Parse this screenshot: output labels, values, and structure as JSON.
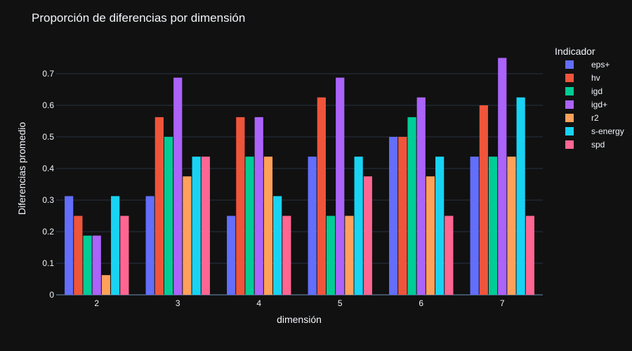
{
  "chart_data": {
    "type": "bar",
    "title": "Proporción de diferencias por dimensión",
    "xlabel": "dimensión",
    "ylabel": "Diferencias promedio",
    "ylim": [
      0,
      0.8
    ],
    "yticks": [
      0,
      0.1,
      0.2,
      0.3,
      0.4,
      0.5,
      0.6,
      0.7
    ],
    "ytick_labels": [
      "0",
      "0.1",
      "0.2",
      "0.3",
      "0.4",
      "0.5",
      "0.6",
      "0.7"
    ],
    "categories": [
      "2",
      "3",
      "4",
      "5",
      "6",
      "7"
    ],
    "grid": true,
    "legend": {
      "title": "Indicador",
      "placement": "right"
    },
    "series": [
      {
        "name": "eps+",
        "color": "#636efa",
        "values": [
          0.3125,
          0.3125,
          0.25,
          0.4375,
          0.5,
          0.4375
        ]
      },
      {
        "name": "hv",
        "color": "#ef553b",
        "values": [
          0.25,
          0.5625,
          0.5625,
          0.625,
          0.5,
          0.6
        ]
      },
      {
        "name": "igd",
        "color": "#00cc96",
        "values": [
          0.1875,
          0.5,
          0.4375,
          0.25,
          0.5625,
          0.4375
        ]
      },
      {
        "name": "igd+",
        "color": "#ab63fa",
        "values": [
          0.1875,
          0.6875,
          0.5625,
          0.6875,
          0.625,
          0.75
        ]
      },
      {
        "name": "r2",
        "color": "#ffa15a",
        "values": [
          0.0625,
          0.375,
          0.4375,
          0.25,
          0.375,
          0.4375
        ]
      },
      {
        "name": "s-energy",
        "color": "#19d3f3",
        "values": [
          0.3125,
          0.4375,
          0.3125,
          0.4375,
          0.4375,
          0.625
        ]
      },
      {
        "name": "spd",
        "color": "#ff6692",
        "values": [
          0.25,
          0.4375,
          0.25,
          0.375,
          0.25,
          0.25
        ]
      }
    ]
  }
}
